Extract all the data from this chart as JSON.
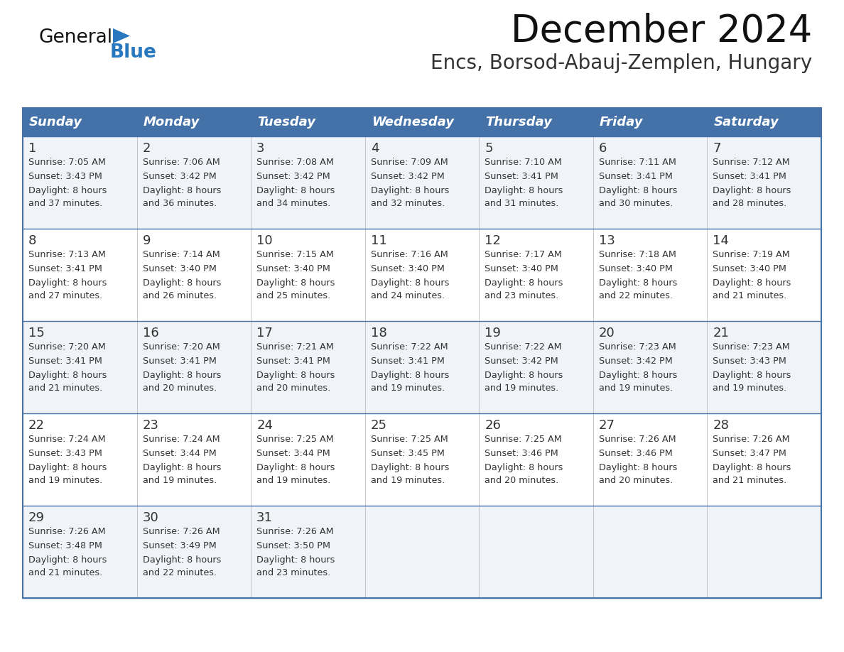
{
  "title": "December 2024",
  "subtitle": "Encs, Borsod-Abauj-Zemplen, Hungary",
  "days_of_week": [
    "Sunday",
    "Monday",
    "Tuesday",
    "Wednesday",
    "Thursday",
    "Friday",
    "Saturday"
  ],
  "header_bg": "#4472a8",
  "header_text": "#ffffff",
  "row_bg_even": "#f0f4f8",
  "row_bg_odd": "#ffffff",
  "border_color": "#4472a8",
  "day_number_color": "#333333",
  "cell_text_color": "#333333",
  "title_color": "#111111",
  "subtitle_color": "#333333",
  "logo_general_color": "#111111",
  "logo_blue_color": "#2878c0",
  "weeks": [
    {
      "days": [
        {
          "date": 1,
          "sunrise": "7:05 AM",
          "sunset": "3:43 PM",
          "daylight_hours": 8,
          "daylight_minutes": 37
        },
        {
          "date": 2,
          "sunrise": "7:06 AM",
          "sunset": "3:42 PM",
          "daylight_hours": 8,
          "daylight_minutes": 36
        },
        {
          "date": 3,
          "sunrise": "7:08 AM",
          "sunset": "3:42 PM",
          "daylight_hours": 8,
          "daylight_minutes": 34
        },
        {
          "date": 4,
          "sunrise": "7:09 AM",
          "sunset": "3:42 PM",
          "daylight_hours": 8,
          "daylight_minutes": 32
        },
        {
          "date": 5,
          "sunrise": "7:10 AM",
          "sunset": "3:41 PM",
          "daylight_hours": 8,
          "daylight_minutes": 31
        },
        {
          "date": 6,
          "sunrise": "7:11 AM",
          "sunset": "3:41 PM",
          "daylight_hours": 8,
          "daylight_minutes": 30
        },
        {
          "date": 7,
          "sunrise": "7:12 AM",
          "sunset": "3:41 PM",
          "daylight_hours": 8,
          "daylight_minutes": 28
        }
      ]
    },
    {
      "days": [
        {
          "date": 8,
          "sunrise": "7:13 AM",
          "sunset": "3:41 PM",
          "daylight_hours": 8,
          "daylight_minutes": 27
        },
        {
          "date": 9,
          "sunrise": "7:14 AM",
          "sunset": "3:40 PM",
          "daylight_hours": 8,
          "daylight_minutes": 26
        },
        {
          "date": 10,
          "sunrise": "7:15 AM",
          "sunset": "3:40 PM",
          "daylight_hours": 8,
          "daylight_minutes": 25
        },
        {
          "date": 11,
          "sunrise": "7:16 AM",
          "sunset": "3:40 PM",
          "daylight_hours": 8,
          "daylight_minutes": 24
        },
        {
          "date": 12,
          "sunrise": "7:17 AM",
          "sunset": "3:40 PM",
          "daylight_hours": 8,
          "daylight_minutes": 23
        },
        {
          "date": 13,
          "sunrise": "7:18 AM",
          "sunset": "3:40 PM",
          "daylight_hours": 8,
          "daylight_minutes": 22
        },
        {
          "date": 14,
          "sunrise": "7:19 AM",
          "sunset": "3:40 PM",
          "daylight_hours": 8,
          "daylight_minutes": 21
        }
      ]
    },
    {
      "days": [
        {
          "date": 15,
          "sunrise": "7:20 AM",
          "sunset": "3:41 PM",
          "daylight_hours": 8,
          "daylight_minutes": 21
        },
        {
          "date": 16,
          "sunrise": "7:20 AM",
          "sunset": "3:41 PM",
          "daylight_hours": 8,
          "daylight_minutes": 20
        },
        {
          "date": 17,
          "sunrise": "7:21 AM",
          "sunset": "3:41 PM",
          "daylight_hours": 8,
          "daylight_minutes": 20
        },
        {
          "date": 18,
          "sunrise": "7:22 AM",
          "sunset": "3:41 PM",
          "daylight_hours": 8,
          "daylight_minutes": 19
        },
        {
          "date": 19,
          "sunrise": "7:22 AM",
          "sunset": "3:42 PM",
          "daylight_hours": 8,
          "daylight_minutes": 19
        },
        {
          "date": 20,
          "sunrise": "7:23 AM",
          "sunset": "3:42 PM",
          "daylight_hours": 8,
          "daylight_minutes": 19
        },
        {
          "date": 21,
          "sunrise": "7:23 AM",
          "sunset": "3:43 PM",
          "daylight_hours": 8,
          "daylight_minutes": 19
        }
      ]
    },
    {
      "days": [
        {
          "date": 22,
          "sunrise": "7:24 AM",
          "sunset": "3:43 PM",
          "daylight_hours": 8,
          "daylight_minutes": 19
        },
        {
          "date": 23,
          "sunrise": "7:24 AM",
          "sunset": "3:44 PM",
          "daylight_hours": 8,
          "daylight_minutes": 19
        },
        {
          "date": 24,
          "sunrise": "7:25 AM",
          "sunset": "3:44 PM",
          "daylight_hours": 8,
          "daylight_minutes": 19
        },
        {
          "date": 25,
          "sunrise": "7:25 AM",
          "sunset": "3:45 PM",
          "daylight_hours": 8,
          "daylight_minutes": 19
        },
        {
          "date": 26,
          "sunrise": "7:25 AM",
          "sunset": "3:46 PM",
          "daylight_hours": 8,
          "daylight_minutes": 20
        },
        {
          "date": 27,
          "sunrise": "7:26 AM",
          "sunset": "3:46 PM",
          "daylight_hours": 8,
          "daylight_minutes": 20
        },
        {
          "date": 28,
          "sunrise": "7:26 AM",
          "sunset": "3:47 PM",
          "daylight_hours": 8,
          "daylight_minutes": 21
        }
      ]
    },
    {
      "days": [
        {
          "date": 29,
          "sunrise": "7:26 AM",
          "sunset": "3:48 PM",
          "daylight_hours": 8,
          "daylight_minutes": 21
        },
        {
          "date": 30,
          "sunrise": "7:26 AM",
          "sunset": "3:49 PM",
          "daylight_hours": 8,
          "daylight_minutes": 22
        },
        {
          "date": 31,
          "sunrise": "7:26 AM",
          "sunset": "3:50 PM",
          "daylight_hours": 8,
          "daylight_minutes": 23
        }
      ]
    }
  ]
}
